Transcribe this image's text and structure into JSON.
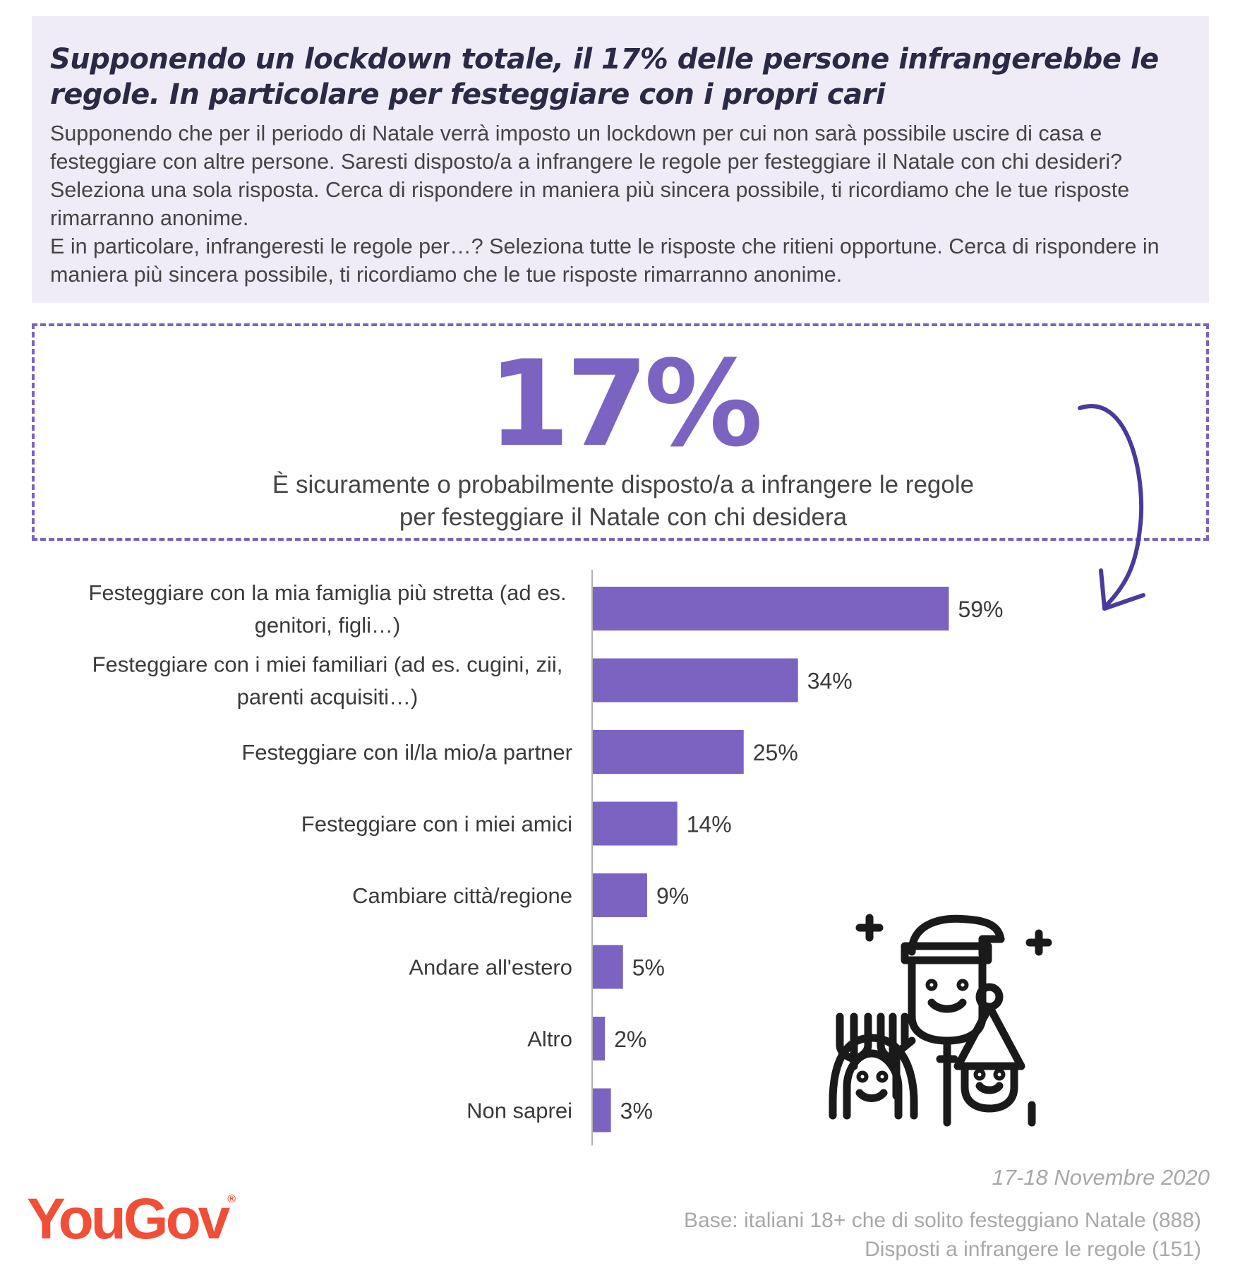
{
  "header": {
    "title": "Supponendo un lockdown totale, il 17% delle persone infrangerebbe le regole. In particolare per festeggiare con i propri cari",
    "question_lines": [
      "Supponendo che per il periodo di Natale verrà imposto un lockdown per cui non sarà possibile uscire di casa e festeggiare con altre persone. Saresti disposto/a a infrangere le regole per festeggiare il Natale con chi desideri? Seleziona una sola risposta. Cerca di rispondere in maniera più sincera possibile, ti ricordiamo che le tue risposte rimarranno anonime.",
      "E in particolare, infrangeresti le regole per…? Seleziona tutte le risposte che ritieni opportune. Cerca di rispondere in maniera più sincera possibile, ti ricordiamo che le tue risposte rimarranno anonime."
    ]
  },
  "highlight": {
    "value": "17%",
    "caption_line1": "È sicuramente o probabilmente disposto/a a infrangere le regole",
    "caption_line2": "per festeggiare il Natale con chi desidera"
  },
  "chart_data": {
    "type": "bar",
    "orientation": "horizontal",
    "categories": [
      [
        "Festeggiare con la mia famiglia più stretta (ad es.",
        "genitori, figli…)"
      ],
      [
        "Festeggiare con i miei familiari (ad es. cugini, zii,",
        "parenti acquisiti…)"
      ],
      [
        "Festeggiare con il/la mio/a partner"
      ],
      [
        "Festeggiare con i miei amici"
      ],
      [
        "Cambiare città/regione"
      ],
      [
        "Andare all'estero"
      ],
      [
        "Altro"
      ],
      [
        "Non saprei"
      ]
    ],
    "values": [
      59,
      34,
      25,
      14,
      9,
      5,
      2,
      3
    ],
    "value_labels": [
      "59%",
      "34%",
      "25%",
      "14%",
      "9%",
      "5%",
      "2%",
      "3%"
    ],
    "unit": "%",
    "bar_color": "#7b63c2",
    "grid": false,
    "legend": "none"
  },
  "colors": {
    "accent": "#7b63c2",
    "header_bg": "#efecf7",
    "logo": "#f04e37",
    "footer_text": "#a8a8a8"
  },
  "decoration": {
    "arrow_icon": "curved-arrow-down",
    "people_icon": "christmas-party-people-icon"
  },
  "footer": {
    "date": "17-18 Novembre 2020",
    "base_line1": "Base: italiani 18+ che di solito festeggiano Natale (888)",
    "base_line2": "Disposti a infrangere le regole (151)",
    "logo_text": "YouGov",
    "logo_mark": "®"
  }
}
